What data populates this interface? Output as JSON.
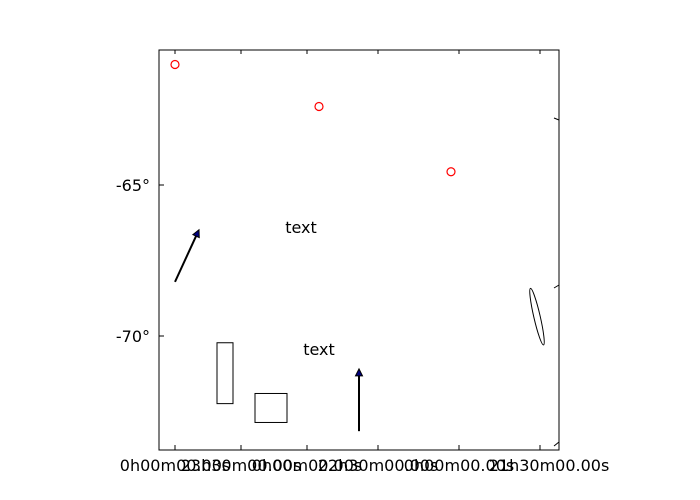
{
  "chart_data": {
    "type": "scatter",
    "title": "",
    "xlabel": "",
    "ylabel": "",
    "x_tick_labels": [
      "0h00m00.00s",
      "23h30m00.00s",
      "0h00m00.00s",
      "22h30m00.00s",
      "0h00m00.00s",
      "21h30m00.00s"
    ],
    "y_tick_labels": [
      "-65°",
      "-70°"
    ],
    "points": [
      {
        "x": 0.04,
        "y": -60.5
      },
      {
        "x": 0.4,
        "y": -61.95
      },
      {
        "x": 0.73,
        "y": -64.2
      }
    ],
    "text_annotations": [
      {
        "text": "text",
        "x": 0.35,
        "y": -66.4
      },
      {
        "text": "text",
        "x": 0.4,
        "y": -70.45
      }
    ],
    "arrows": [
      {
        "x0": 0.04,
        "y0": -68.0,
        "x1": 0.1,
        "y1": -66.2
      },
      {
        "x0": 0.5,
        "y0": -73.15,
        "x1": 0.5,
        "y1": -71.0
      }
    ],
    "rectangles": [
      {
        "x": 0.145,
        "y": -72.2,
        "width": 0.04,
        "height": 2.1
      },
      {
        "x": 0.24,
        "y": -72.85,
        "width": 0.08,
        "height": 1.0
      }
    ],
    "ellipses": [
      {
        "cx": 0.945,
        "cy": -69.2,
        "rx": 0.008,
        "ry": 1.0,
        "angle_deg": -13
      }
    ],
    "xlim": [
      0,
      1
    ],
    "ylim": [
      -73.8,
      -60.0
    ],
    "grid": false,
    "colors": {
      "points": "#ff0000",
      "arrow_fill": "#000080",
      "lines": "#000000"
    }
  }
}
